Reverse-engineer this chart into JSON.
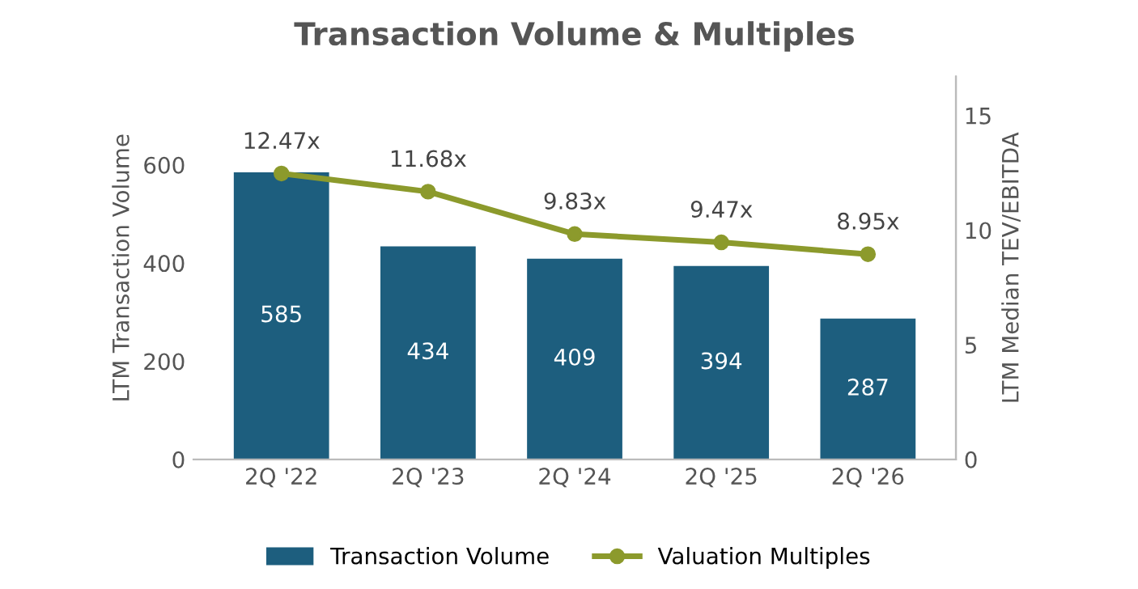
{
  "chart_data": {
    "type": "bar",
    "title": "Transaction Volume & Multiples",
    "ylabel": "LTM Transaction Volume",
    "y2label": "LTM Median TEV/EBITDA",
    "categories": [
      "2Q '22",
      "2Q '23",
      "2Q '24",
      "2Q '25",
      "2Q '26"
    ],
    "series": [
      {
        "name": "Transaction Volume",
        "color": "#1d5e7e",
        "values": [
          585,
          434,
          409,
          394,
          287
        ],
        "value_labels": [
          "585",
          "434",
          "409",
          "394",
          "287"
        ]
      },
      {
        "name": "Valuation Multiples",
        "type": "line",
        "axis": "y2",
        "color": "#8c9a2c",
        "marker": "circle",
        "values": [
          12.47,
          11.68,
          9.83,
          9.47,
          8.95
        ],
        "value_labels": [
          "12.47x",
          "11.68x",
          "9.83x",
          "9.47x",
          "8.95x"
        ]
      }
    ],
    "ylim": [
      0,
      780
    ],
    "yticks": [
      0,
      200,
      400,
      600
    ],
    "y2lim": [
      0,
      16.7
    ],
    "y2ticks": [
      0,
      5,
      10,
      15
    ],
    "grid": false,
    "legend": "bottom"
  }
}
